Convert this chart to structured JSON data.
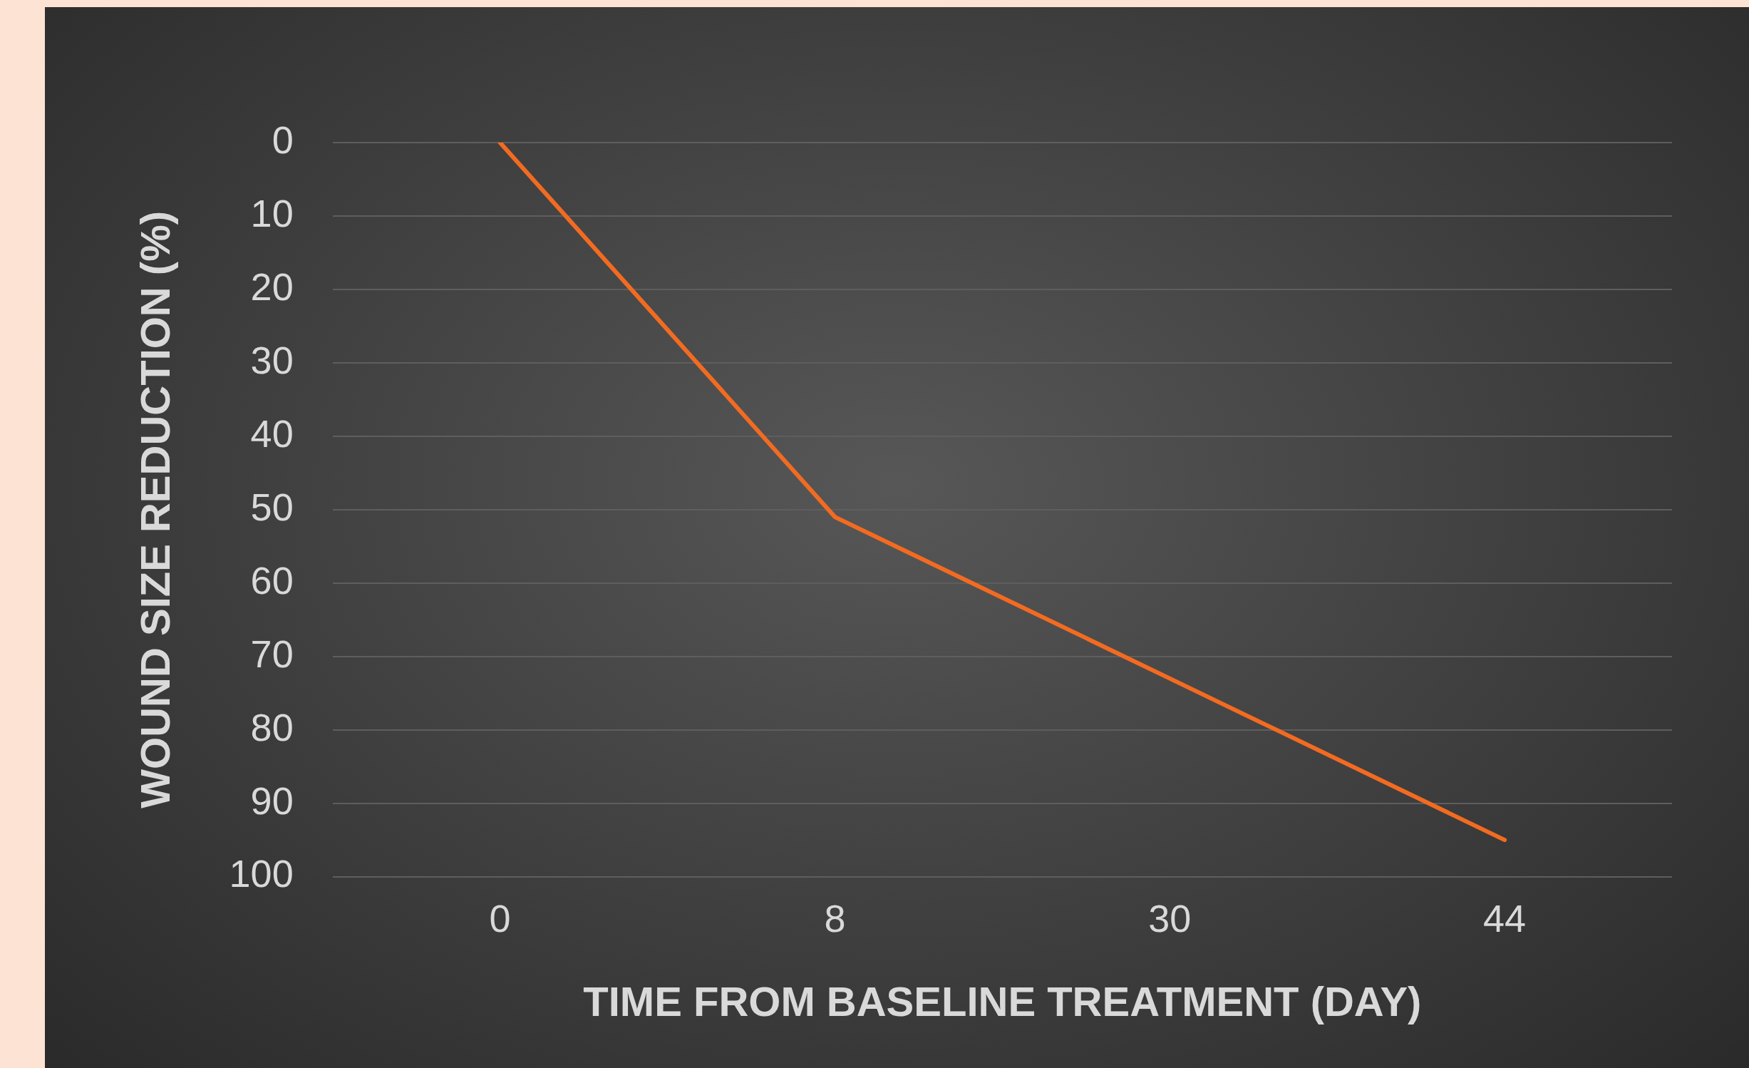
{
  "chart_data": {
    "type": "line",
    "xlabel": "TIME FROM BASELINE TREATMENT (DAY)",
    "ylabel": "WOUND SIZE REDUCTION (%)",
    "categories": [
      "0",
      "8",
      "30",
      "44"
    ],
    "series": [
      {
        "color": "#f26b21",
        "values": [
          0,
          51,
          73,
          95
        ]
      }
    ],
    "ylim": [
      100,
      0
    ],
    "yticks": [
      0,
      10,
      20,
      30,
      40,
      50,
      60,
      70,
      80,
      90,
      100
    ],
    "grid": "y",
    "legend": false,
    "marker": "none",
    "line_style": "solid"
  }
}
